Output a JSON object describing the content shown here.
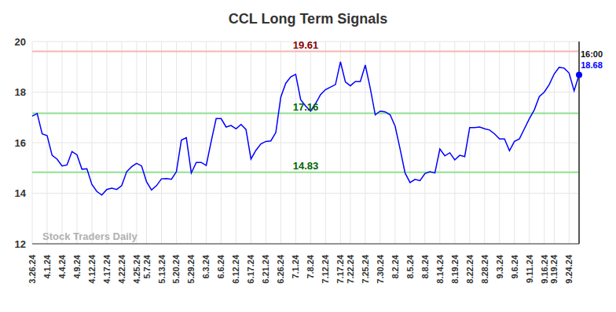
{
  "chart_data": {
    "type": "line",
    "title": "CCL Long Term Signals",
    "color": "#0000ff",
    "grid": true,
    "categories": [
      "3.26.24",
      null,
      null,
      "4.1.24",
      null,
      null,
      "4.4.24",
      null,
      null,
      "4.9.24",
      null,
      null,
      "4.12.24",
      null,
      null,
      "4.17.24",
      null,
      null,
      "4.22.24",
      null,
      null,
      "4.25.24",
      null,
      "5.7.24",
      null,
      null,
      "5.13.24",
      null,
      null,
      "5.20.24",
      null,
      null,
      "5.29.24",
      null,
      null,
      "6.3.24",
      null,
      null,
      "6.6.24",
      null,
      null,
      "6.12.24",
      null,
      null,
      "6.17.24",
      null,
      null,
      "6.21.24",
      null,
      null,
      "6.26.24",
      null,
      null,
      "7.1.24",
      null,
      null,
      "7.8.24",
      null,
      null,
      "7.12.24",
      null,
      null,
      "7.17.24",
      null,
      "7.22.24",
      null,
      null,
      "7.25.24",
      null,
      null,
      "7.30.24",
      null,
      null,
      "8.2.24",
      null,
      null,
      "8.5.24",
      null,
      null,
      "8.8.24",
      null,
      null,
      "8.14.24",
      null,
      null,
      "8.19.24",
      null,
      null,
      "8.22.24",
      null,
      null,
      "8.28.24",
      null,
      null,
      "9.3.24",
      null,
      null,
      "9.6.24",
      null,
      null,
      "9.11.24",
      null,
      null,
      "9.16.24",
      null,
      "9.19.24",
      null,
      null,
      "9.24.24",
      null,
      null
    ],
    "values": [
      17.05,
      17.15,
      16.35,
      16.28,
      15.5,
      15.35,
      15.08,
      15.12,
      15.65,
      15.52,
      14.95,
      14.97,
      14.35,
      14.07,
      13.93,
      14.15,
      14.2,
      14.15,
      14.3,
      14.85,
      15.05,
      15.18,
      15.08,
      14.45,
      14.13,
      14.3,
      14.57,
      14.58,
      14.55,
      14.85,
      16.1,
      16.2,
      14.8,
      15.22,
      15.22,
      15.1,
      16.05,
      16.95,
      16.95,
      16.62,
      16.68,
      16.55,
      16.72,
      16.52,
      15.35,
      15.7,
      15.95,
      16.05,
      16.07,
      16.4,
      17.8,
      18.35,
      18.6,
      18.7,
      17.7,
      17.45,
      17.25,
      17.55,
      17.9,
      18.1,
      18.2,
      18.3,
      19.2,
      18.4,
      18.25,
      18.42,
      18.42,
      19.07,
      18.15,
      17.1,
      17.25,
      17.22,
      17.1,
      16.65,
      15.75,
      14.8,
      14.42,
      14.55,
      14.5,
      14.78,
      14.85,
      14.8,
      15.75,
      15.48,
      15.6,
      15.32,
      15.5,
      15.45,
      16.6,
      16.6,
      16.62,
      16.55,
      16.5,
      16.35,
      16.15,
      16.15,
      15.68,
      16.05,
      16.15,
      16.55,
      16.95,
      17.3,
      17.82,
      18.0,
      18.3,
      18.72,
      18.98,
      18.95,
      18.75,
      18.05,
      18.68
    ],
    "value_labels": [
      null,
      null,
      null,
      null,
      null,
      null,
      null,
      null,
      null,
      null,
      null,
      null,
      null,
      null,
      null,
      null,
      null,
      null,
      null,
      null,
      null,
      null,
      null,
      null,
      null,
      null,
      null,
      null,
      null,
      null,
      null,
      null,
      null,
      null,
      null,
      null,
      null,
      null,
      null,
      null,
      null,
      null,
      null,
      null,
      null,
      null,
      null,
      null,
      null,
      null,
      null,
      null,
      null,
      null,
      null,
      null,
      null,
      null,
      null,
      null,
      null,
      null,
      null,
      null,
      null,
      null,
      null,
      null,
      null,
      null,
      null,
      null,
      null,
      null,
      null,
      null,
      null,
      null,
      null,
      null,
      null,
      null,
      null,
      null,
      null,
      null,
      null,
      null,
      null,
      null,
      null,
      null,
      null,
      null,
      null,
      null,
      null,
      null,
      null,
      null,
      null,
      null,
      null,
      null,
      null,
      null,
      null,
      null,
      null,
      null,
      "18.68"
    ],
    "ylim": [
      12,
      20
    ],
    "yticks": [
      12,
      14,
      16,
      18,
      20
    ],
    "signals": [
      {
        "value": 19.61,
        "label": "19.61",
        "color": "#f4b6b6"
      },
      {
        "value": 17.16,
        "label": "17.16",
        "color": "#90e090"
      },
      {
        "value": 14.83,
        "label": "14.83",
        "color": "#90e090"
      }
    ],
    "annotations": [
      {
        "text": "Stock Traders Daily"
      },
      {
        "text": "16:00"
      }
    ]
  }
}
